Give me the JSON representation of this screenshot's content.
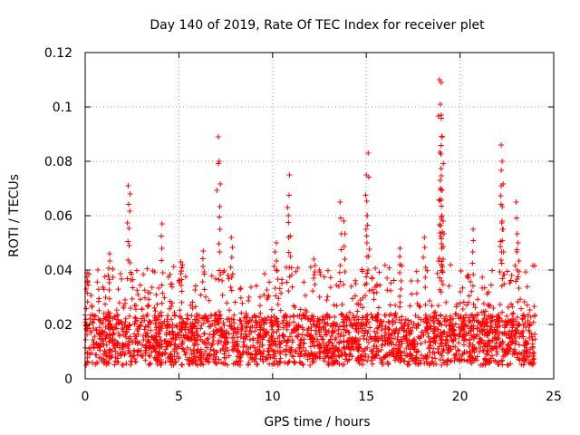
{
  "chart_data": {
    "type": "scatter",
    "title": "Day 140 of 2019, Rate Of TEC Index for receiver plet",
    "xlabel": "GPS time / hours",
    "ylabel": "ROTI / TECUs",
    "xlim": [
      0,
      25
    ],
    "ylim": [
      0,
      0.12
    ],
    "xticks": [
      0,
      5,
      10,
      15,
      20,
      25
    ],
    "yticks": [
      0,
      0.02,
      0.04,
      0.06,
      0.08,
      0.1,
      0.12
    ],
    "xtick_labels": [
      "0",
      "5",
      "10",
      "15",
      "20",
      "25"
    ],
    "ytick_labels": [
      "0",
      "0.02",
      "0.04",
      "0.06",
      "0.08",
      "0.1",
      "0.12"
    ],
    "grid": true,
    "marker": "+",
    "marker_color": "#ff0000",
    "series": [
      {
        "name": "ROTI",
        "x_range": [
          0,
          24
        ],
        "typical_range": [
          0.005,
          0.03
        ],
        "peaks": [
          {
            "x": 0.1,
            "y": 0.039
          },
          {
            "x": 1.3,
            "y": 0.046
          },
          {
            "x": 2.3,
            "y": 0.071
          },
          {
            "x": 2.4,
            "y": 0.068
          },
          {
            "x": 4.1,
            "y": 0.057
          },
          {
            "x": 5.1,
            "y": 0.043
          },
          {
            "x": 6.3,
            "y": 0.047
          },
          {
            "x": 7.1,
            "y": 0.089
          },
          {
            "x": 7.15,
            "y": 0.08
          },
          {
            "x": 7.8,
            "y": 0.052
          },
          {
            "x": 10.2,
            "y": 0.05
          },
          {
            "x": 10.8,
            "y": 0.063
          },
          {
            "x": 10.9,
            "y": 0.075
          },
          {
            "x": 12.2,
            "y": 0.044
          },
          {
            "x": 13.6,
            "y": 0.065
          },
          {
            "x": 13.8,
            "y": 0.058
          },
          {
            "x": 15.1,
            "y": 0.083
          },
          {
            "x": 15.0,
            "y": 0.075
          },
          {
            "x": 15.05,
            "y": 0.06
          },
          {
            "x": 16.8,
            "y": 0.048
          },
          {
            "x": 18.1,
            "y": 0.052
          },
          {
            "x": 18.9,
            "y": 0.11
          },
          {
            "x": 19.0,
            "y": 0.109
          },
          {
            "x": 18.95,
            "y": 0.101
          },
          {
            "x": 19.0,
            "y": 0.097
          },
          {
            "x": 19.05,
            "y": 0.089
          },
          {
            "x": 18.95,
            "y": 0.073
          },
          {
            "x": 19.0,
            "y": 0.066
          },
          {
            "x": 19.1,
            "y": 0.058
          },
          {
            "x": 20.7,
            "y": 0.055
          },
          {
            "x": 22.2,
            "y": 0.086
          },
          {
            "x": 22.25,
            "y": 0.08
          },
          {
            "x": 22.2,
            "y": 0.071
          },
          {
            "x": 22.3,
            "y": 0.055
          },
          {
            "x": 23.0,
            "y": 0.065
          },
          {
            "x": 23.1,
            "y": 0.05
          }
        ]
      }
    ]
  }
}
